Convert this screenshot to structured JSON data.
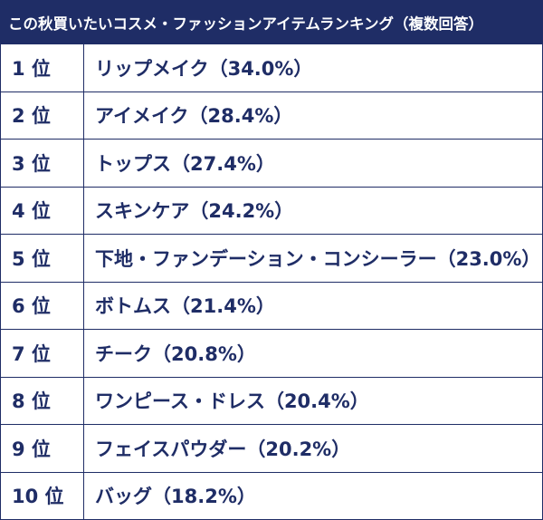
{
  "table": {
    "title": "この秋買いたいコスメ・ファッションアイテムランキング（複数回答）",
    "rows": [
      [
        "1 位",
        "リップメイク（34.0%）"
      ],
      [
        "2 位",
        "アイメイク（28.4%）"
      ],
      [
        "3 位",
        "トップス（27.4%）"
      ],
      [
        "4 位",
        "スキンケア（24.2%）"
      ],
      [
        "5 位",
        "下地・ファンデーション・コンシーラー（23.0%）"
      ],
      [
        "6 位",
        "ボトムス（21.4%）"
      ],
      [
        "7 位",
        "チーク（20.8%）"
      ],
      [
        "8 位",
        "ワンピース・ドレス（20.4%）"
      ],
      [
        "9 位",
        "フェイスパウダー（20.2%）"
      ],
      [
        "10 位",
        "バッグ（18.2%）"
      ]
    ]
  }
}
